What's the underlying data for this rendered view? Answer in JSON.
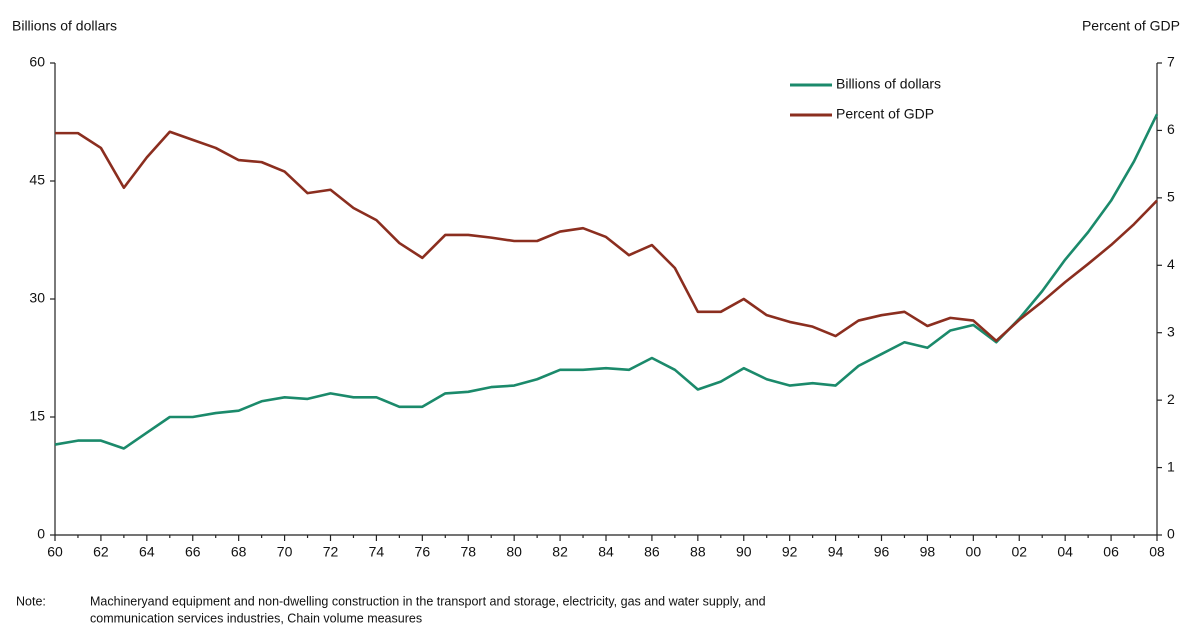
{
  "chart_data": {
    "type": "line",
    "y_label": "Billions of dollars",
    "y2_label": "Percent of GDP",
    "categories": [
      "60",
      null,
      "62",
      null,
      "64",
      null,
      "66",
      null,
      "68",
      null,
      "70",
      null,
      "72",
      null,
      "74",
      null,
      "76",
      null,
      "78",
      null,
      "80",
      null,
      "82",
      null,
      "84",
      null,
      "86",
      null,
      "88",
      null,
      "90",
      null,
      "92",
      null,
      "94",
      null,
      "96",
      null,
      "98",
      null,
      "00",
      null,
      "02",
      null,
      "04",
      null,
      "06",
      null,
      "08"
    ],
    "ylim": [
      0,
      60
    ],
    "yticks": [
      0,
      15,
      30,
      45,
      60
    ],
    "y2lim": [
      0,
      7
    ],
    "y2ticks": [
      0,
      1,
      2,
      3,
      4,
      5,
      6,
      7
    ],
    "legend": "upper right",
    "series": [
      {
        "name": "Billions of dollars",
        "color": "#1b8a6b",
        "values": [
          11.5,
          12,
          12,
          11,
          13,
          15,
          15,
          15.5,
          15.8,
          17,
          17.5,
          17.3,
          18,
          17.5,
          17.5,
          16.3,
          16.3,
          18,
          18.2,
          18.8,
          19,
          19.8,
          21,
          21,
          21.2,
          21,
          22.5,
          21,
          18.5,
          19.5,
          21.2,
          19.8,
          19,
          19.3,
          19,
          21.5,
          23,
          24.5,
          23.8,
          26,
          26.7,
          24.5,
          27.5,
          31,
          35,
          38.5,
          42.5,
          47.5,
          53.5
        ]
      },
      {
        "name": "Percent of GDP",
        "color": "#8b2e1f",
        "axis": "y2",
        "values": [
          5.96,
          5.96,
          5.74,
          5.15,
          5.6,
          5.98,
          5.86,
          5.74,
          5.56,
          5.53,
          5.39,
          5.07,
          5.12,
          4.85,
          4.67,
          4.33,
          4.11,
          4.45,
          4.45,
          4.41,
          4.36,
          4.36,
          4.5,
          4.55,
          4.42,
          4.15,
          4.3,
          3.96,
          3.31,
          3.31,
          3.5,
          3.26,
          3.16,
          3.09,
          2.95,
          3.18,
          3.26,
          3.31,
          3.1,
          3.22,
          3.18,
          2.88,
          3.19,
          3.46,
          3.75,
          4.02,
          4.3,
          4.61,
          4.96
        ]
      }
    ],
    "note_label": "Note:",
    "note_lines": [
      "Machineryand equipment and non-dwelling construction in the transport and storage, electricity, gas and water supply, and",
      "communication services industries, Chain volume measures"
    ]
  }
}
